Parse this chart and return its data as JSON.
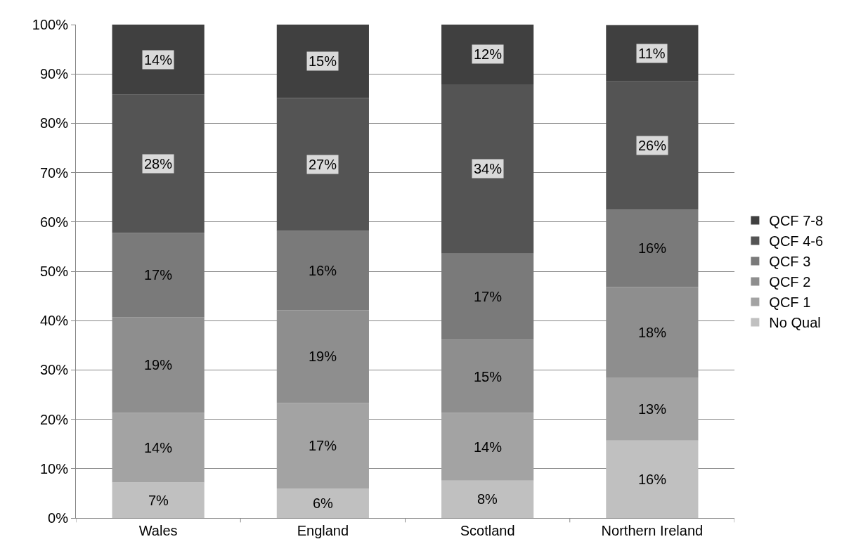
{
  "chart_data": {
    "type": "bar",
    "stacked": true,
    "categories": [
      "Wales",
      "England",
      "Scotland",
      "Northern Ireland"
    ],
    "series": [
      {
        "name": "No Qual",
        "color": "#c0c0c0",
        "values": [
          7.2,
          6.0,
          7.6,
          15.7
        ],
        "value_labels": [
          "7%",
          "6%",
          "8%",
          "16%"
        ]
      },
      {
        "name": "QCF 1",
        "color": "#a3a3a3",
        "values": [
          14.1,
          17.3,
          13.7,
          12.8
        ],
        "value_labels": [
          "14%",
          "17%",
          "14%",
          "13%"
        ]
      },
      {
        "name": "QCF 2",
        "color": "#8e8e8e",
        "values": [
          19.4,
          18.8,
          14.8,
          18.3
        ],
        "value_labels": [
          "19%",
          "19%",
          "15%",
          "18%"
        ]
      },
      {
        "name": "QCF 3",
        "color": "#7a7a7a",
        "values": [
          17.1,
          16.1,
          17.5,
          15.7
        ],
        "value_labels": [
          "17%",
          "16%",
          "17%",
          "16%"
        ]
      },
      {
        "name": "QCF 4-6",
        "color": "#545454",
        "values": [
          28.0,
          26.9,
          34.3,
          26.0
        ],
        "value_labels": [
          "28%",
          "27%",
          "34%",
          "26%"
        ]
      },
      {
        "name": "QCF 7-8",
        "color": "#404040",
        "values": [
          14.2,
          14.9,
          12.1,
          11.4
        ],
        "value_labels": [
          "14%",
          "15%",
          "12%",
          "11%"
        ]
      }
    ],
    "ylim": [
      0,
      100
    ],
    "yticks": [
      {
        "value": 0,
        "label": "0%"
      },
      {
        "value": 10,
        "label": "10%"
      },
      {
        "value": 20,
        "label": "20%"
      },
      {
        "value": 30,
        "label": "30%"
      },
      {
        "value": 40,
        "label": "40%"
      },
      {
        "value": 50,
        "label": "50%"
      },
      {
        "value": 60,
        "label": "60%"
      },
      {
        "value": 70,
        "label": "70%"
      },
      {
        "value": 80,
        "label": "80%"
      },
      {
        "value": 90,
        "label": "90%"
      },
      {
        "value": 100,
        "label": "100%"
      }
    ],
    "grid": "y",
    "legend": "right"
  }
}
